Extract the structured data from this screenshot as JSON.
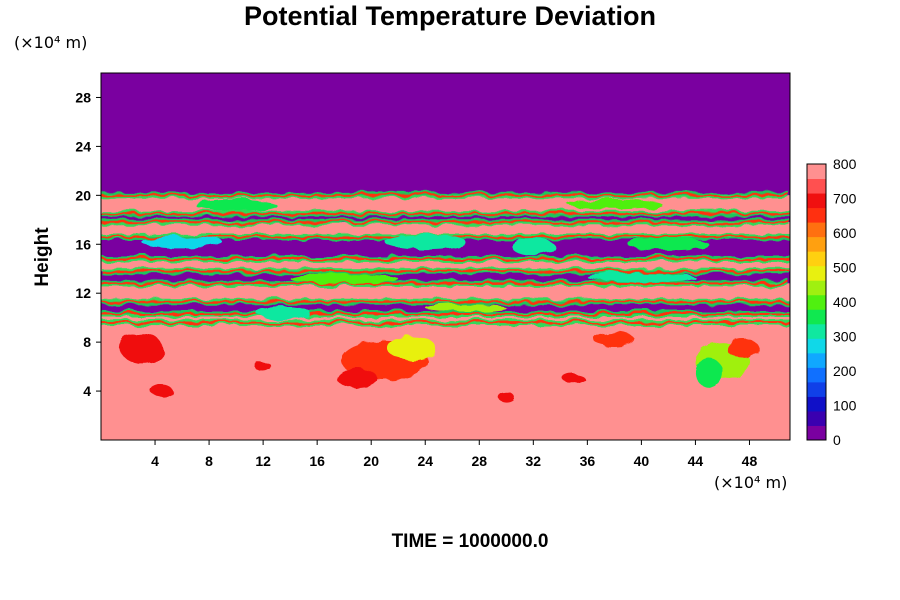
{
  "chart_data": {
    "type": "heatmap",
    "title": "Potential Temperature Deviation",
    "ylabel": "Height",
    "y_unit": "(×10⁴ m)",
    "x_unit": "(×10⁴ m)",
    "x_ticks": [
      4,
      8,
      12,
      16,
      20,
      24,
      28,
      32,
      36,
      40,
      44,
      48
    ],
    "y_ticks": [
      4,
      8,
      12,
      16,
      20,
      24,
      28
    ],
    "xlim": [
      0,
      51
    ],
    "ylim": [
      0,
      30
    ],
    "colorbar": {
      "ticks": [
        0,
        100,
        200,
        300,
        400,
        500,
        600,
        700,
        800
      ],
      "range": [
        0,
        800
      ],
      "colors": [
        "#7a00a0",
        "#3a00b0",
        "#1010c8",
        "#1040e8",
        "#1070ff",
        "#10a8ff",
        "#10d8e8",
        "#10e8a0",
        "#10e850",
        "#50f010",
        "#a0f010",
        "#e8f010",
        "#ffd010",
        "#ffa010",
        "#ff7010",
        "#ff3010",
        "#f01010",
        "#ff5050",
        "#ff9090"
      ]
    },
    "bands": [
      {
        "y_range": [
          20,
          30
        ],
        "value": 0
      },
      {
        "y_range": [
          18.5,
          20
        ],
        "value": 800
      },
      {
        "y_range": [
          17.8,
          18.5
        ],
        "value": 0
      },
      {
        "y_range": [
          16.6,
          17.8
        ],
        "value": 800
      },
      {
        "y_range": [
          14.8,
          16.6
        ],
        "value": 0
      },
      {
        "y_range": [
          13.8,
          14.8
        ],
        "value": 800
      },
      {
        "y_range": [
          12.8,
          13.8
        ],
        "value": 0
      },
      {
        "y_range": [
          11.3,
          12.8
        ],
        "value": 800
      },
      {
        "y_range": [
          10.3,
          11.3
        ],
        "value": 0
      },
      {
        "y_range": [
          9.6,
          10.3
        ],
        "value": 800
      },
      {
        "y_range": [
          0,
          9.6
        ],
        "value": 800
      }
    ],
    "blobs": [
      {
        "x": 21,
        "y": 6.5,
        "rx": 3.2,
        "ry": 1.6,
        "value": 650
      },
      {
        "x": 23,
        "y": 7.5,
        "rx": 1.8,
        "ry": 1.0,
        "value": 500
      },
      {
        "x": 19,
        "y": 5.0,
        "rx": 1.5,
        "ry": 0.8,
        "value": 700
      },
      {
        "x": 46,
        "y": 6.5,
        "rx": 2.0,
        "ry": 1.5,
        "value": 450
      },
      {
        "x": 45,
        "y": 5.5,
        "rx": 1.0,
        "ry": 1.2,
        "value": 350
      },
      {
        "x": 47.5,
        "y": 7.5,
        "rx": 1.2,
        "ry": 0.8,
        "value": 650
      },
      {
        "x": 3,
        "y": 7.5,
        "rx": 1.6,
        "ry": 1.2,
        "value": 700
      },
      {
        "x": 4.5,
        "y": 4.0,
        "rx": 0.8,
        "ry": 0.5,
        "value": 700
      },
      {
        "x": 13.5,
        "y": 10.4,
        "rx": 2.0,
        "ry": 0.5,
        "value": 300
      },
      {
        "x": 32,
        "y": 15.8,
        "rx": 1.6,
        "ry": 0.7,
        "value": 300
      },
      {
        "x": 10,
        "y": 19.2,
        "rx": 3.0,
        "ry": 0.5,
        "value": 350
      },
      {
        "x": 38,
        "y": 19.3,
        "rx": 3.5,
        "ry": 0.4,
        "value": 400
      },
      {
        "x": 6,
        "y": 16.2,
        "rx": 3.0,
        "ry": 0.5,
        "value": 250
      },
      {
        "x": 24,
        "y": 16.2,
        "rx": 3.0,
        "ry": 0.6,
        "value": 300
      },
      {
        "x": 42,
        "y": 16.0,
        "rx": 3.0,
        "ry": 0.5,
        "value": 350
      },
      {
        "x": 18,
        "y": 13.2,
        "rx": 4.0,
        "ry": 0.4,
        "value": 400
      },
      {
        "x": 40,
        "y": 13.3,
        "rx": 4.0,
        "ry": 0.4,
        "value": 300
      },
      {
        "x": 27,
        "y": 10.8,
        "rx": 3.0,
        "ry": 0.3,
        "value": 450
      },
      {
        "x": 38,
        "y": 8.2,
        "rx": 1.5,
        "ry": 0.6,
        "value": 650
      },
      {
        "x": 35,
        "y": 5.0,
        "rx": 0.8,
        "ry": 0.4,
        "value": 700
      },
      {
        "x": 30,
        "y": 3.5,
        "rx": 0.6,
        "ry": 0.4,
        "value": 700
      },
      {
        "x": 12,
        "y": 6.0,
        "rx": 0.6,
        "ry": 0.4,
        "value": 700
      }
    ],
    "time_label": "TIME = 1000000.0"
  }
}
